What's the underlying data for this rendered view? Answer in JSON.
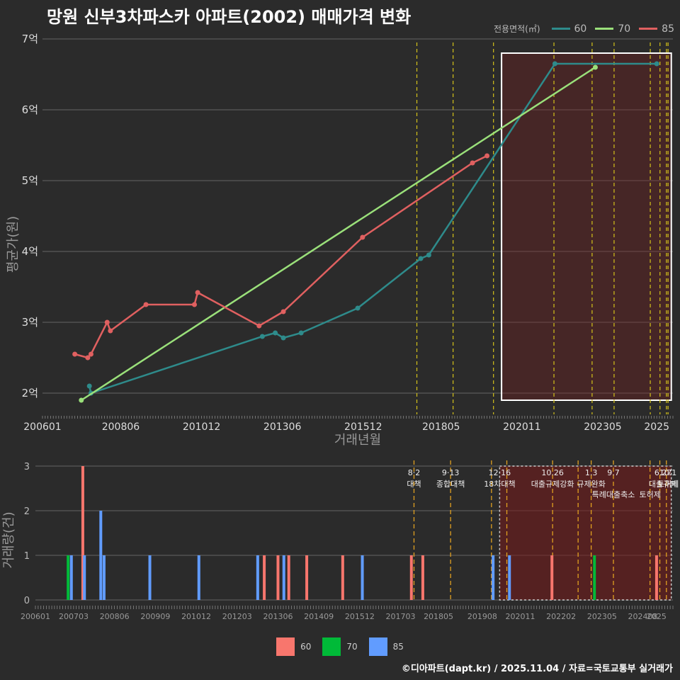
{
  "title": "망원 신부3차파스카 아파트(2002) 매매가격 변화",
  "credit": "©디아파트(dapt.kr) / 2025.11.04 / 자료=국토교통부 실거래가",
  "colors": {
    "60": "#2e8b8b",
    "70": "#9ae07a",
    "85": "#e06060",
    "bar60": "#f8766d",
    "bar70": "#00ba38",
    "bar85": "#619cff",
    "policy": "#d4c21a",
    "policy_bottom": "#e0a020"
  },
  "legend_top": {
    "title": "전용면적(㎡)",
    "items": [
      "60",
      "70",
      "85"
    ]
  },
  "legend_bottom": {
    "items": [
      "60",
      "70",
      "85"
    ]
  },
  "chart_data": [
    {
      "type": "line",
      "title": "망원 신부3차파스카 아파트(2002) 매매가격 변화",
      "xlabel": "거래년월",
      "ylabel": "평균가(원)",
      "xlim": [
        2006.0,
        2025.5
      ],
      "ylim": [
        1.7,
        7.1
      ],
      "yticks": [
        2,
        3,
        4,
        5,
        6,
        7
      ],
      "ytick_labels": [
        "2억",
        "3억",
        "4억",
        "5억",
        "6억",
        "7억"
      ],
      "xticks": [
        2006.0,
        2008.42,
        2010.92,
        2013.42,
        2015.92,
        2018.33,
        2020.83,
        2023.33,
        2025.0
      ],
      "xtick_labels": [
        "200601",
        "200806",
        "201012",
        "201306",
        "201512",
        "201805",
        "202011",
        "202305",
        "2025"
      ],
      "series": [
        {
          "name": "60",
          "x": [
            2007.45,
            2007.5,
            2012.8,
            2013.2,
            2013.45,
            2014.0,
            2015.75,
            2017.7,
            2017.95,
            2021.85,
            2025.0
          ],
          "y": [
            2.1,
            2.0,
            2.8,
            2.85,
            2.78,
            2.85,
            3.2,
            3.9,
            3.95,
            6.65,
            6.65
          ]
        },
        {
          "name": "70",
          "x": [
            2007.2,
            2023.1
          ],
          "y": [
            1.9,
            6.6
          ]
        },
        {
          "name": "85",
          "x": [
            2007.0,
            2007.4,
            2007.5,
            2008.0,
            2008.1,
            2009.2,
            2010.7,
            2010.8,
            2012.7,
            2013.45,
            2015.9,
            2019.3,
            2019.75
          ],
          "y": [
            2.55,
            2.5,
            2.55,
            3.0,
            2.88,
            3.25,
            3.25,
            3.42,
            2.95,
            3.15,
            4.2,
            5.25,
            5.35
          ]
        }
      ],
      "policy_lines": [
        2017.58,
        2018.7,
        2019.95,
        2021.82,
        2023.0,
        2023.68,
        2024.8,
        2025.1,
        2025.3,
        2025.35
      ],
      "highlight_range": [
        2020.2,
        2025.45,
        1.9,
        6.8
      ]
    },
    {
      "type": "bar",
      "xlabel": "",
      "ylabel": "거래량(건)",
      "xlim": [
        2006.0,
        2025.5
      ],
      "ylim": [
        0,
        3
      ],
      "yticks": [
        0,
        1,
        2,
        3
      ],
      "ytick_labels": [
        "0",
        "1",
        "2",
        "3"
      ],
      "xticks": [
        2006.0,
        2007.17,
        2008.42,
        2009.67,
        2010.92,
        2012.17,
        2013.42,
        2014.67,
        2015.92,
        2017.17,
        2018.33,
        2019.67,
        2020.83,
        2022.08,
        2023.33,
        2024.58,
        2025.0
      ],
      "xtick_labels": [
        "200601",
        "200703",
        "200806",
        "200909",
        "201012",
        "201203",
        "201306",
        "201409",
        "201512",
        "201703",
        "201805",
        "201908",
        "202011",
        "202202",
        "202305",
        "202408",
        "2025"
      ],
      "series": [
        {
          "name": "60",
          "x": [
            2007.45,
            2013.0,
            2013.42,
            2013.75,
            2014.3,
            2015.4,
            2017.5,
            2017.85,
            2021.8,
            2025.0
          ],
          "y": [
            3,
            1,
            1,
            1,
            1,
            1,
            1,
            1,
            1,
            1
          ]
        },
        {
          "name": "70",
          "x": [
            2007.0,
            2023.1
          ],
          "y": [
            1,
            1
          ]
        },
        {
          "name": "85",
          "x": [
            2007.1,
            2007.5,
            2008.0,
            2008.1,
            2009.5,
            2011.0,
            2012.8,
            2013.6,
            2016.0,
            2020.0,
            2020.5
          ],
          "y": [
            1,
            1,
            2,
            1,
            1,
            1,
            1,
            1,
            1,
            1,
            1
          ]
        }
      ],
      "policy_lines": [
        2017.58,
        2018.7,
        2019.95,
        2020.42,
        2021.82,
        2022.6,
        2023.0,
        2023.68,
        2024.8,
        2025.1,
        2025.3
      ],
      "annotations": [
        {
          "x": 2017.58,
          "date": "8·2",
          "label": "대책"
        },
        {
          "x": 2018.7,
          "date": "9·13",
          "label": "종합대책"
        },
        {
          "x": 2020.2,
          "date": "12·16",
          "label": "18차대책"
        },
        {
          "x": 2021.82,
          "date": "10.26",
          "label": "대출규제강화"
        },
        {
          "x": 2023.0,
          "date": "1.3",
          "label": "규제완화"
        },
        {
          "x": 2023.68,
          "date": "9.7",
          "label": "특례대출축소"
        },
        {
          "x": 2024.8,
          "date": "",
          "label": "토허제"
        },
        {
          "x": 2025.2,
          "date": "6.27",
          "label": "대출규제"
        },
        {
          "x": 2025.35,
          "date": "10.1",
          "label": "토허제"
        }
      ],
      "highlight_range": [
        2020.2,
        2025.45,
        0,
        3
      ]
    }
  ]
}
